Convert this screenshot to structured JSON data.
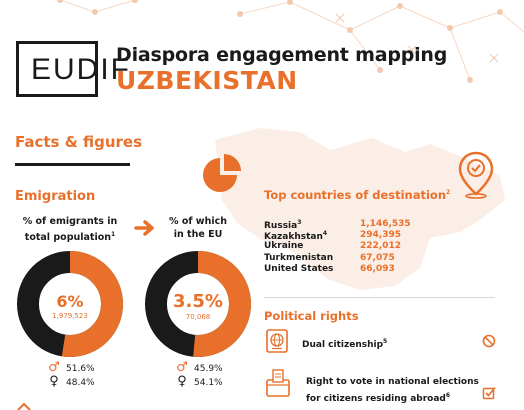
{
  "header": {
    "logo_text": "EUDIF",
    "title": "Diaspora engagement mapping",
    "country": "UZBEKISTAN"
  },
  "facts": {
    "heading": "Facts & figures"
  },
  "emigration": {
    "heading": "Emigration",
    "left": {
      "label_line1": "% of emigrants in",
      "label_line2": "total population",
      "label_note": "1",
      "percent": "6%",
      "percent_value": 6,
      "count": "1,979,523",
      "male": "51.6%",
      "female": "48.4%"
    },
    "right": {
      "label_line1": "% of which",
      "label_line2": "in the EU",
      "percent": "3.5%",
      "percent_value": 3.5,
      "count": "70,068",
      "male": "45.9%",
      "female": "54.1%"
    }
  },
  "destinations": {
    "heading": "Top countries of destination",
    "heading_note": "2",
    "rows": [
      {
        "name": "Russia",
        "note": "3",
        "value": "1,146,535"
      },
      {
        "name": "Kazakhstan",
        "note": "4",
        "value": "294,395"
      },
      {
        "name": "Ukraine",
        "note": "",
        "value": "222,012"
      },
      {
        "name": "Turkmenistan",
        "note": "",
        "value": "67,075"
      },
      {
        "name": "United States",
        "note": "",
        "value": "66,093"
      }
    ]
  },
  "political": {
    "heading": "Political rights",
    "items": [
      {
        "line1": "Dual citizenship",
        "line2": "",
        "note": "5",
        "status_icon": "prohibited-icon"
      },
      {
        "line1": "Right to vote in national elections",
        "line2": "for citizens residing abroad",
        "note": "6",
        "status_icon": "checkbox-checked-icon"
      }
    ]
  },
  "colors": {
    "accent": "#e8702a",
    "dark": "#1a1a1a",
    "map_fill": "#fbeee6"
  }
}
